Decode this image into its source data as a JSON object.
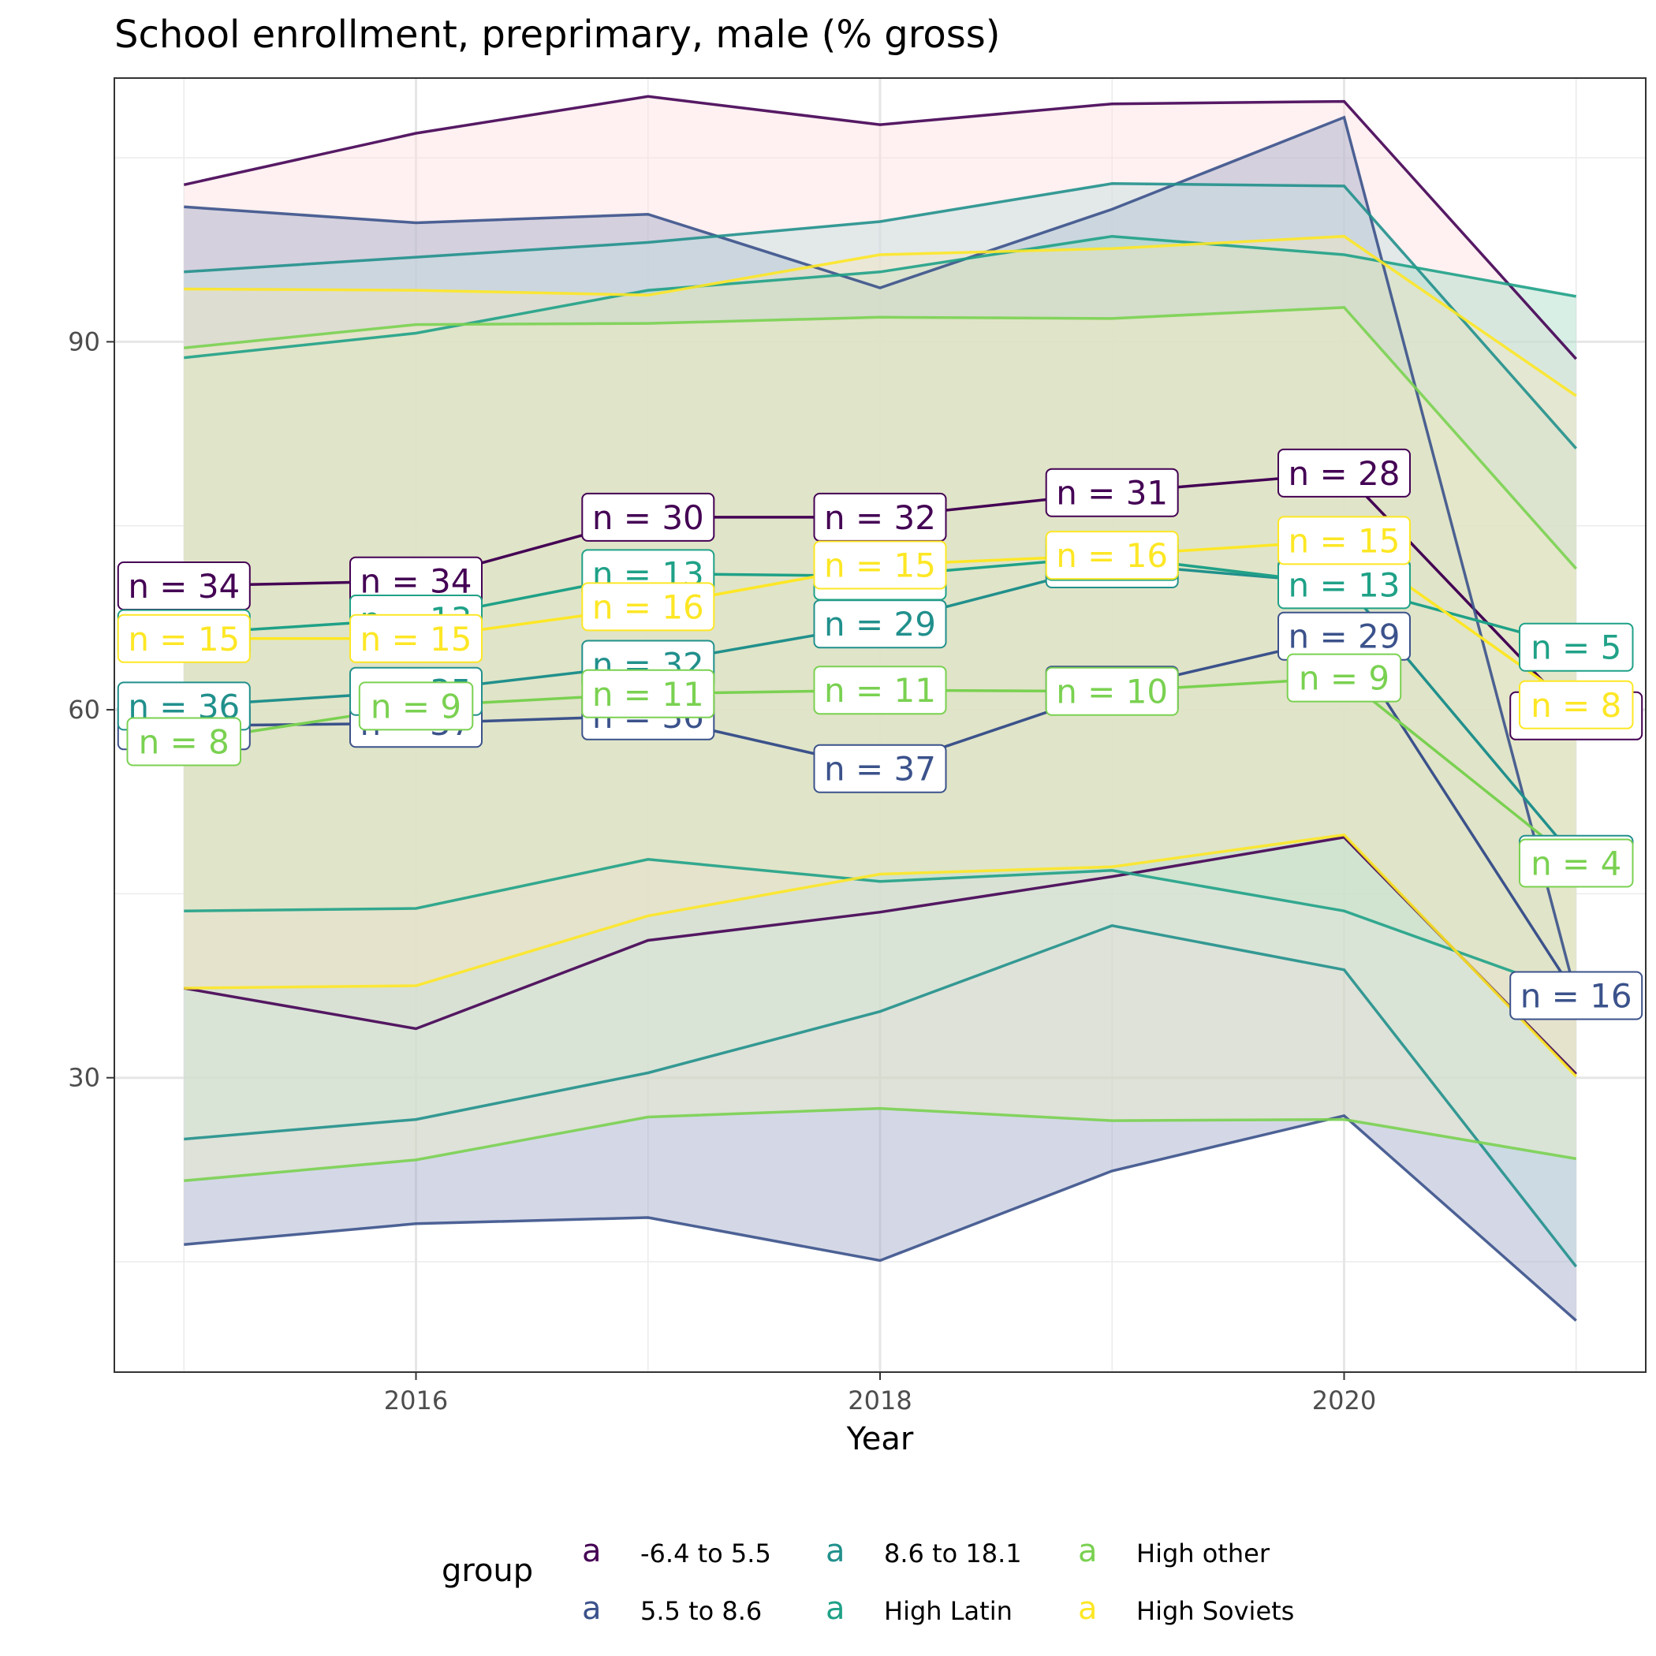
{
  "chart_data": {
    "type": "line",
    "title": "School enrollment, preprimary, male (% gross)",
    "xlabel": "Year",
    "ylabel": "",
    "xlim": [
      2014.7,
      2021.3
    ],
    "ylim": [
      6.0,
      111.5
    ],
    "x_ticks": [
      2016,
      2018,
      2020
    ],
    "y_ticks": [
      30,
      60,
      90
    ],
    "grid": true,
    "legend": {
      "title": "group",
      "position": "bottom",
      "key_glyph": "a"
    },
    "x": [
      2015,
      2016,
      2017,
      2018,
      2019,
      2020,
      2021
    ],
    "series": [
      {
        "name": "-6.4 to 5.5",
        "color": "#440154",
        "band_fill": "#FFE0E0",
        "mean": [
          70.1,
          70.5,
          75.7,
          75.7,
          77.7,
          79.3,
          59.5
        ],
        "upper": [
          102.8,
          107.0,
          110.0,
          107.7,
          109.4,
          109.6,
          88.6
        ],
        "lower": [
          37.3,
          34.0,
          41.2,
          43.5,
          46.4,
          49.6,
          30.3
        ],
        "n": [
          34,
          34,
          30,
          32,
          31,
          28,
          12
        ]
      },
      {
        "name": "5.5 to 8.6",
        "color": "#3B528B",
        "band_fill": "#A0A8C8",
        "mean": [
          58.7,
          58.9,
          59.5,
          55.2,
          61.6,
          66.0,
          36.7
        ],
        "upper": [
          101.0,
          99.7,
          100.4,
          94.4,
          100.8,
          108.3,
          36.7
        ],
        "lower": [
          16.4,
          18.1,
          18.6,
          15.1,
          22.4,
          26.9,
          10.2
        ],
        "n": [
          39,
          37,
          36,
          37,
          32,
          29,
          16
        ]
      },
      {
        "name": "8.6 to 18.1",
        "color": "#21908C",
        "band_fill": "#C0DDE0",
        "mean": [
          60.3,
          61.5,
          63.7,
          67.0,
          71.9,
          70.3,
          47.8
        ],
        "upper": [
          95.7,
          96.9,
          98.1,
          99.8,
          102.9,
          102.7,
          81.3
        ],
        "lower": [
          25.0,
          26.6,
          30.4,
          35.4,
          42.4,
          38.8,
          14.6
        ],
        "n": [
          36,
          35,
          32,
          29,
          30,
          29,
          9
        ]
      },
      {
        "name": "High Latin",
        "color": "#1FA187",
        "band_fill": "#A8DCC8",
        "mean": [
          66.2,
          67.4,
          71.1,
          70.9,
          72.5,
          70.2,
          65.1
        ],
        "upper": [
          88.7,
          90.7,
          94.2,
          95.7,
          98.6,
          97.1,
          93.7
        ],
        "lower": [
          43.6,
          43.8,
          47.8,
          46.0,
          46.9,
          43.6,
          36.8
        ],
        "n": [
          13,
          13,
          13,
          13,
          13,
          13,
          5
        ]
      },
      {
        "name": "High other",
        "color": "#7AD151",
        "band_fill": "#EAF0C8",
        "mean": [
          57.4,
          60.3,
          61.3,
          61.6,
          61.5,
          62.6,
          47.5
        ],
        "upper": [
          89.5,
          91.4,
          91.5,
          92.0,
          91.9,
          92.8,
          71.5
        ],
        "lower": [
          21.6,
          23.3,
          26.8,
          27.5,
          26.5,
          26.6,
          23.4
        ],
        "n": [
          8,
          9,
          11,
          11,
          10,
          9,
          4
        ]
      },
      {
        "name": "High Soviets",
        "color": "#FDE725",
        "band_fill": "#F5E6C0",
        "mean": [
          65.8,
          65.8,
          68.4,
          71.8,
          72.6,
          73.8,
          60.4
        ],
        "upper": [
          94.3,
          94.2,
          93.8,
          97.1,
          97.6,
          98.6,
          85.6
        ],
        "lower": [
          37.3,
          37.5,
          43.2,
          46.6,
          47.2,
          49.8,
          30.1
        ],
        "n": [
          15,
          15,
          16,
          15,
          16,
          15,
          8
        ]
      }
    ]
  }
}
